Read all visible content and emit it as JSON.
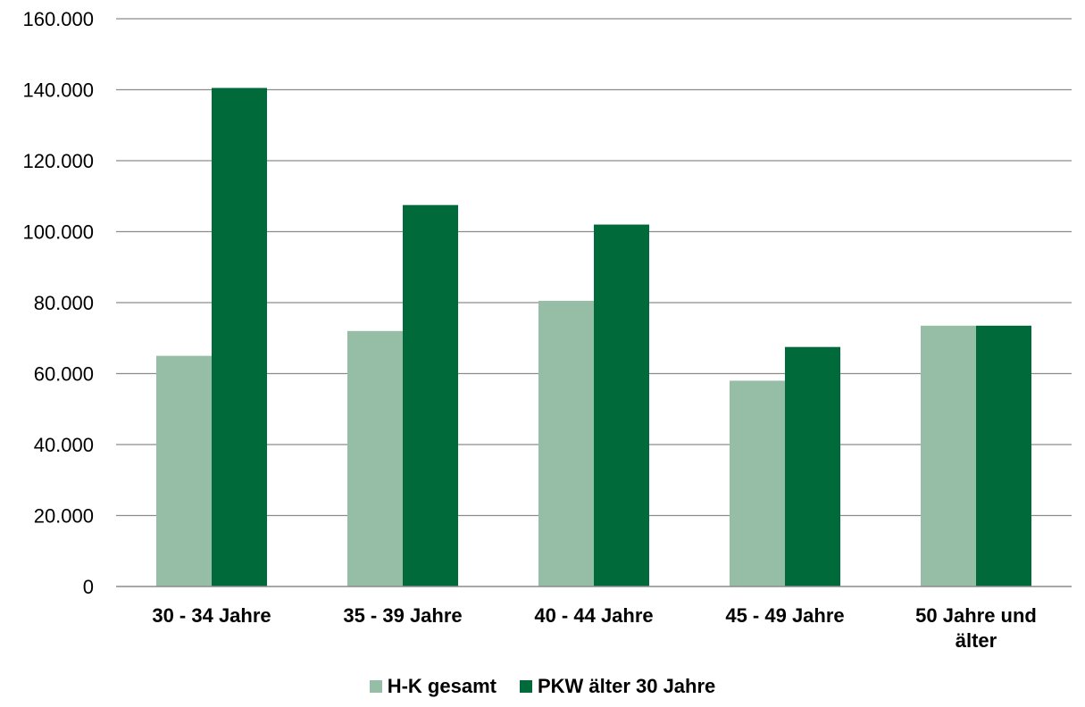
{
  "chart_data": {
    "type": "bar",
    "categories": [
      "30 - 34 Jahre",
      "35 - 39 Jahre",
      "40 - 44 Jahre",
      "45 - 49 Jahre",
      "50 Jahre und älter"
    ],
    "category_lines": [
      [
        "30 - 34 Jahre"
      ],
      [
        "35 - 39 Jahre"
      ],
      [
        "40 - 44 Jahre"
      ],
      [
        "45 - 49 Jahre"
      ],
      [
        "50 Jahre und",
        "älter"
      ]
    ],
    "series": [
      {
        "name": "H-K gesamt",
        "values": [
          65000,
          72000,
          80500,
          58000,
          73500
        ],
        "color": "#96bea6"
      },
      {
        "name": "PKW älter 30 Jahre",
        "values": [
          140500,
          107500,
          102000,
          67500,
          73500
        ],
        "color": "#006a3b"
      }
    ],
    "ylim": [
      0,
      160000
    ],
    "yticks": [
      0,
      20000,
      40000,
      60000,
      80000,
      100000,
      120000,
      140000,
      160000
    ],
    "ytick_labels": [
      "0",
      "20.000",
      "40.000",
      "60.000",
      "80.000",
      "100.000",
      "120.000",
      "140.000",
      "160.000"
    ],
    "grid": true,
    "legend_position": "bottom",
    "title": "",
    "xlabel": "",
    "ylabel": ""
  }
}
